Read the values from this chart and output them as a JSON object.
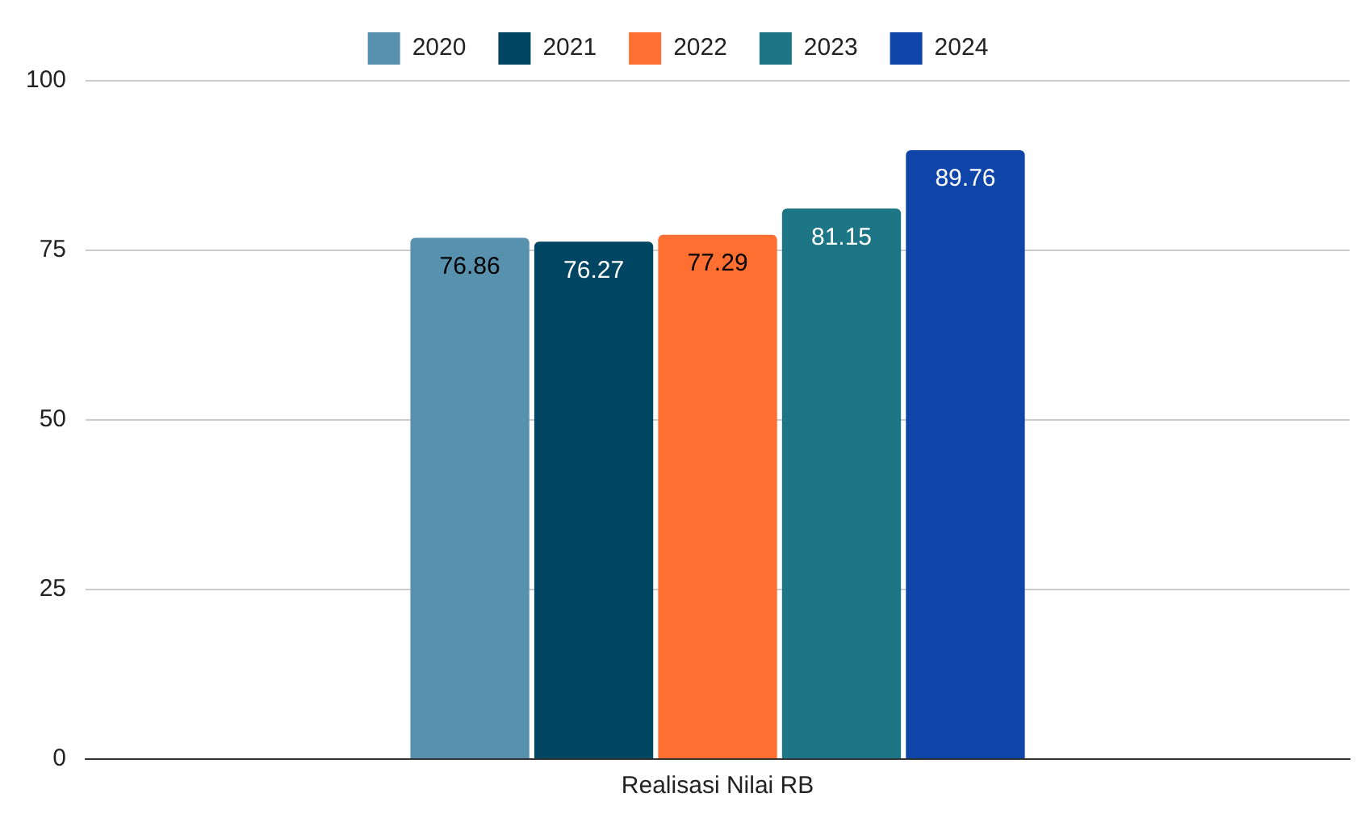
{
  "chart_data": {
    "type": "bar",
    "categories": [
      "Realisasi Nilai RB"
    ],
    "series": [
      {
        "name": "2020",
        "color": "#5891ad",
        "values": [
          76.86
        ]
      },
      {
        "name": "2021",
        "color": "#004561",
        "values": [
          76.27
        ]
      },
      {
        "name": "2022",
        "color": "#ff6f31",
        "values": [
          77.29
        ]
      },
      {
        "name": "2023",
        "color": "#1c7685",
        "values": [
          81.15
        ]
      },
      {
        "name": "2024",
        "color": "#0f45a8",
        "values": [
          89.76
        ]
      }
    ],
    "ylim": [
      0,
      100
    ],
    "yticks": [
      0,
      25,
      50,
      75,
      100
    ],
    "grid": "y",
    "legend": "top",
    "data_labels": true
  }
}
